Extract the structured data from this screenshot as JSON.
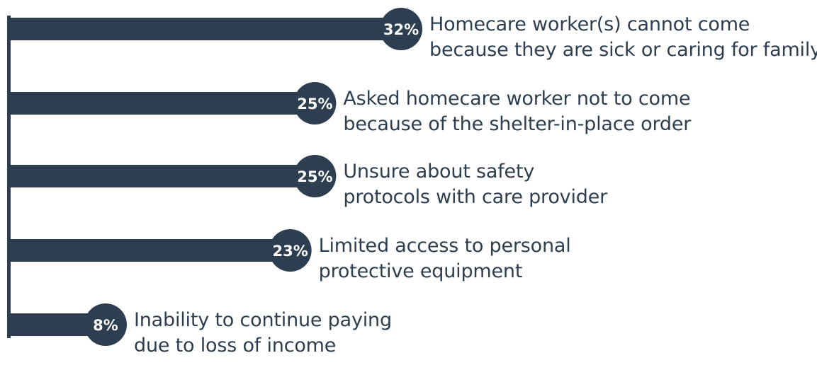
{
  "colors": {
    "bar": "#2c3e50",
    "badge_text": "#ffffff",
    "label_text": "#2c3e50"
  },
  "chart_data": {
    "type": "bar",
    "orientation": "horizontal",
    "categories": [
      "Homecare worker(s) cannot come because they are sick or caring for family",
      "Asked homecare worker not to come because of the shelter-in-place order",
      "Unsure about safety protocols with care provider",
      "Limited access to personal protective equipment",
      "Inability to continue paying due to loss of income"
    ],
    "values": [
      32,
      25,
      25,
      23,
      8
    ],
    "value_labels": [
      "32%",
      "25%",
      "25%",
      "23%",
      "8%"
    ],
    "label_lines": [
      [
        "Homecare worker(s) cannot come",
        "because they are sick or caring for family"
      ],
      [
        "Asked homecare worker not to come",
        "because of the shelter-in-place order"
      ],
      [
        "Unsure about safety",
        "protocols with care provider"
      ],
      [
        "Limited access to personal",
        "protective equipment"
      ],
      [
        "Inability to continue paying",
        "due to loss of income"
      ]
    ],
    "xlim": [
      0,
      32
    ],
    "grid": false,
    "legend": "none",
    "title": "",
    "xlabel": "",
    "ylabel": ""
  }
}
